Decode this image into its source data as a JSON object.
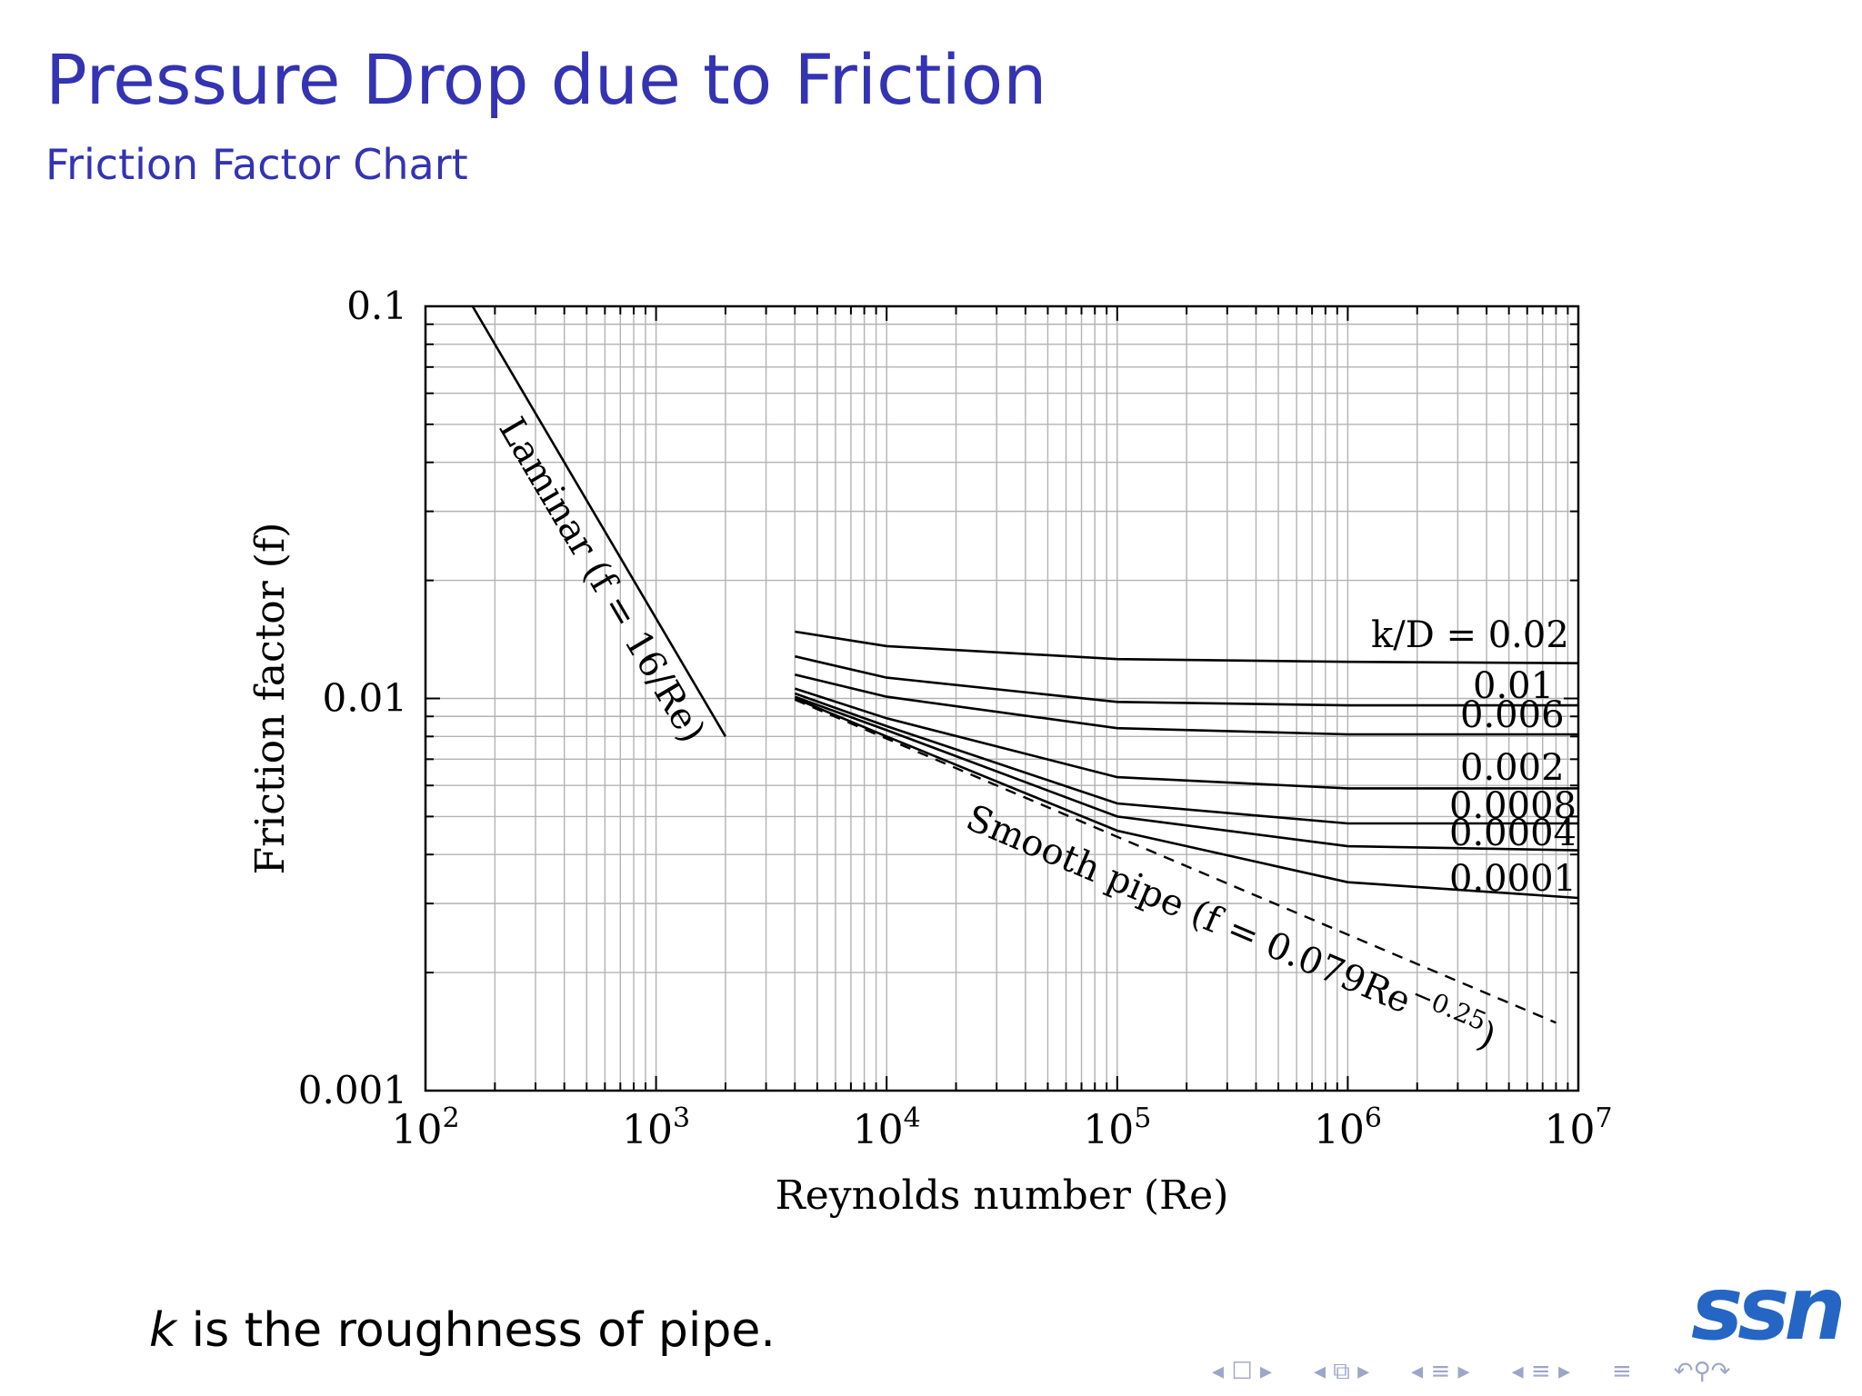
{
  "slide": {
    "title": "Pressure Drop due to Friction",
    "subtitle": "Friction Factor Chart",
    "footnote_var": "k",
    "footnote_rest": " is the roughness of pipe.",
    "logo_text": "ssn",
    "title_color": "#3333b3",
    "logo_color": "#2566c4"
  },
  "nav": {
    "icons": [
      "nav-first-icon",
      "nav-frame-icon",
      "nav-section-icon",
      "nav-subsection-icon",
      "nav-align-icon",
      "nav-search-icon"
    ]
  },
  "chart_data": {
    "type": "line",
    "xlabel": "Reynolds number (Re)",
    "ylabel": "Friction factor (f)",
    "xscale": "log",
    "yscale": "log",
    "xlim": [
      100,
      10000000
    ],
    "ylim": [
      0.001,
      0.1
    ],
    "grid": true,
    "x_tick_labels": [
      {
        "value": 100,
        "base": "10",
        "exp": "2"
      },
      {
        "value": 1000,
        "base": "10",
        "exp": "3"
      },
      {
        "value": 10000,
        "base": "10",
        "exp": "4"
      },
      {
        "value": 100000,
        "base": "10",
        "exp": "5"
      },
      {
        "value": 1000000,
        "base": "10",
        "exp": "6"
      },
      {
        "value": 10000000,
        "base": "10",
        "exp": "7"
      }
    ],
    "y_tick_labels": [
      {
        "value": 0.1,
        "label": "0.1"
      },
      {
        "value": 0.01,
        "label": "0.01"
      },
      {
        "value": 0.001,
        "label": "0.001"
      }
    ],
    "laminar": {
      "label": "Laminar (f = 16/Re)",
      "points": [
        [
          160,
          0.1
        ],
        [
          2000,
          0.008
        ]
      ]
    },
    "smooth": {
      "label": "Smooth pipe (f = 0.079Re",
      "label_exp": "−0.25",
      "label_close": ")",
      "points": [
        [
          4000,
          0.00993
        ],
        [
          10000,
          0.0079
        ],
        [
          100000,
          0.00444
        ],
        [
          1000000,
          0.0025
        ],
        [
          8000000,
          0.00149
        ]
      ]
    },
    "series": [
      {
        "name": "k/D = 0.02",
        "points": [
          [
            4000,
            0.0148
          ],
          [
            10000,
            0.0136
          ],
          [
            100000,
            0.0126
          ],
          [
            1000000,
            0.0124
          ],
          [
            10000000,
            0.0123
          ]
        ]
      },
      {
        "name": "0.01",
        "points": [
          [
            4000,
            0.0128
          ],
          [
            10000,
            0.0113
          ],
          [
            100000,
            0.0098
          ],
          [
            1000000,
            0.0096
          ],
          [
            10000000,
            0.0096
          ]
        ]
      },
      {
        "name": "0.006",
        "points": [
          [
            4000,
            0.0115
          ],
          [
            10000,
            0.0101
          ],
          [
            100000,
            0.0084
          ],
          [
            1000000,
            0.0081
          ],
          [
            10000000,
            0.0081
          ]
        ]
      },
      {
        "name": "0.002",
        "points": [
          [
            4000,
            0.0106
          ],
          [
            10000,
            0.0089
          ],
          [
            100000,
            0.0063
          ],
          [
            1000000,
            0.0059
          ],
          [
            10000000,
            0.0059
          ]
        ]
      },
      {
        "name": "0.0008",
        "points": [
          [
            4000,
            0.0103
          ],
          [
            10000,
            0.0085
          ],
          [
            100000,
            0.0054
          ],
          [
            1000000,
            0.0048
          ],
          [
            10000000,
            0.0048
          ]
        ]
      },
      {
        "name": "0.0004",
        "points": [
          [
            4000,
            0.0101
          ],
          [
            10000,
            0.0083
          ],
          [
            100000,
            0.005
          ],
          [
            1000000,
            0.0042
          ],
          [
            10000000,
            0.0041
          ]
        ]
      },
      {
        "name": "0.0001",
        "points": [
          [
            4000,
            0.01
          ],
          [
            10000,
            0.008
          ],
          [
            100000,
            0.0046
          ],
          [
            1000000,
            0.0034
          ],
          [
            10000000,
            0.0031
          ]
        ]
      }
    ]
  }
}
